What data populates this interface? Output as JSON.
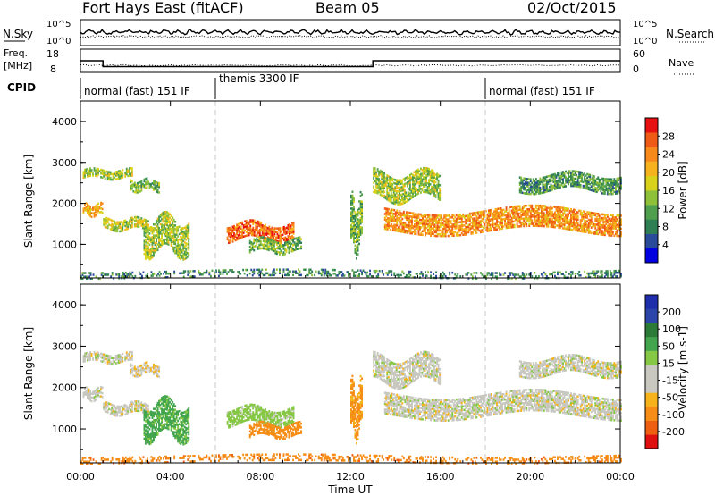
{
  "header": {
    "station": "Fort Hays East (fitACF)",
    "beam": "Beam 05",
    "date": "02/Oct/2015"
  },
  "summary_panels": {
    "nsky_label": "N.Sky",
    "nsearch_label": "N.Search",
    "freq_label_1": "Freq.",
    "freq_label_2": "[MHz]",
    "nave_label": "Nave",
    "cpid_label": "CPID",
    "noise_ticks_left": [
      "10^5",
      "10^0"
    ],
    "noise_ticks_right": [
      "10^5",
      "10^0"
    ],
    "freq_ticks": [
      "18",
      "8"
    ],
    "nave_ticks": [
      "60",
      "0"
    ]
  },
  "cpid": [
    {
      "start_hour": 0,
      "label": "normal (fast) 151 IF"
    },
    {
      "start_hour": 6,
      "label": "themis 3300 IF"
    },
    {
      "start_hour": 18,
      "label": "normal (fast) 151 IF"
    }
  ],
  "axes": {
    "xlabel": "Time UT",
    "ylabel": "Slant Range [km]",
    "xticks": [
      "00:00",
      "04:00",
      "08:00",
      "12:00",
      "16:00",
      "20:00",
      "00:00"
    ],
    "yticks": [
      "1000",
      "2000",
      "3000",
      "4000"
    ],
    "xlim_hours": [
      0,
      24
    ],
    "ylim_km": [
      180,
      4500
    ]
  },
  "colorbars": {
    "power": {
      "label": "Power [dB]",
      "ticks": [
        "28",
        "24",
        "20",
        "16",
        "12",
        "8",
        "4"
      ]
    },
    "velocity": {
      "label": "Velocity [m s-1]",
      "ticks": [
        "200",
        "100",
        "50",
        "15",
        "-15",
        "-50",
        "-100",
        "-200"
      ]
    }
  },
  "chart_data": {
    "type": "heatmap",
    "title": "Fort Hays East (fitACF)",
    "xlabel": "Time UT",
    "ylabel": "Slant Range [km]",
    "xlim_hours": [
      0,
      24
    ],
    "ylim_km": [
      180,
      4500
    ],
    "frequency_MHz": [
      {
        "from_hour": 0,
        "to_hour": 1,
        "value": 13
      },
      {
        "from_hour": 1,
        "to_hour": 13,
        "value": 10.5
      },
      {
        "from_hour": 13,
        "to_hour": 24,
        "value": 13
      }
    ],
    "mode_change_hours": [
      6,
      18
    ],
    "echo_regions": [
      {
        "t0": 0.1,
        "t1": 2.3,
        "r0": 2600,
        "r1": 2800,
        "power_dB": 14,
        "velocity": 0
      },
      {
        "t0": 0.1,
        "t1": 1.0,
        "r0": 1700,
        "r1": 1950,
        "power_dB": 20,
        "velocity": 0
      },
      {
        "t0": 1.0,
        "t1": 3.0,
        "r0": 1350,
        "r1": 1600,
        "power_dB": 16,
        "velocity": 0
      },
      {
        "t0": 2.2,
        "t1": 3.5,
        "r0": 2300,
        "r1": 2550,
        "power_dB": 12,
        "velocity": -10
      },
      {
        "t0": 2.8,
        "t1": 4.8,
        "r0": 800,
        "r1": 1600,
        "power_dB": 14,
        "velocity": 60
      },
      {
        "t0": 6.5,
        "t1": 9.5,
        "r0": 1100,
        "r1": 1500,
        "power_dB": 24,
        "velocity": 30
      },
      {
        "t0": 7.5,
        "t1": 9.8,
        "r0": 800,
        "r1": 1100,
        "power_dB": 12,
        "velocity": -50
      },
      {
        "t0": 12.0,
        "t1": 12.5,
        "r0": 900,
        "r1": 2000,
        "power_dB": 12,
        "velocity": -40
      },
      {
        "t0": 13.0,
        "t1": 16.0,
        "r0": 2100,
        "r1": 2700,
        "power_dB": 14,
        "velocity": 0
      },
      {
        "t0": 13.5,
        "t1": 24.0,
        "r0": 1300,
        "r1": 1800,
        "power_dB": 22,
        "velocity": 0
      },
      {
        "t0": 19.5,
        "t1": 24.0,
        "r0": 2300,
        "r1": 2700,
        "power_dB": 10,
        "velocity": 0
      },
      {
        "t0": 0.0,
        "t1": 24.0,
        "r0": 180,
        "r1": 350,
        "power_dB": 8,
        "velocity": -60
      }
    ]
  },
  "colors": {
    "power_scale": [
      "#0000e0",
      "#2a4a9a",
      "#2f7f55",
      "#4f9f4f",
      "#8ec03a",
      "#d8d21a",
      "#f7b31e",
      "#f78a1b",
      "#ef5a17",
      "#e81111"
    ],
    "velocity_scale": [
      "#e01010",
      "#ee5f12",
      "#f58d16",
      "#f6b31b",
      "#c8c8c0",
      "#c8c8c0",
      "#86c845",
      "#43a64f",
      "#2b7a38",
      "#2c45a8",
      "#1f2eaa"
    ]
  }
}
